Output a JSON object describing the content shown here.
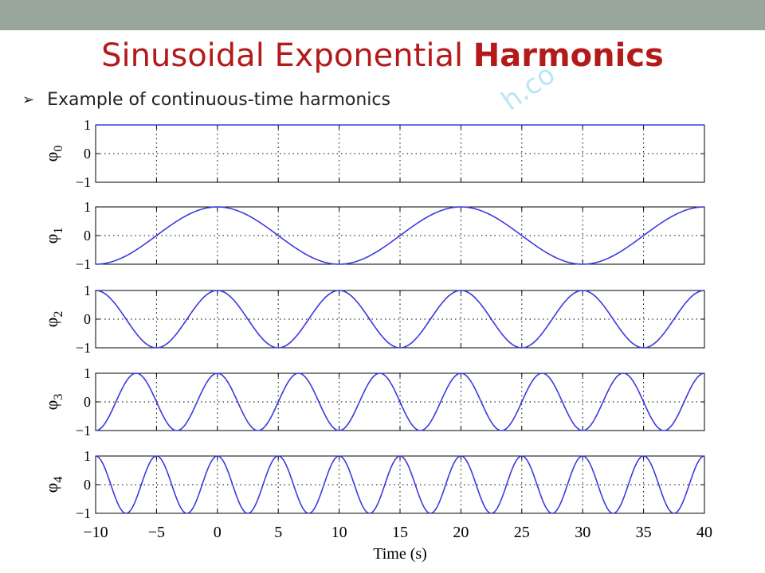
{
  "slide": {
    "title_main": "Sinusoidal Exponential ",
    "title_bold": "Harmonics",
    "bullet_text": "Example of continuous-time harmonics",
    "watermark_text": "h.co"
  },
  "colors": {
    "top_bar": "#97a59a",
    "title": "#b31b1b",
    "series": "#3b3bdf",
    "watermark": "#7fd3ee"
  },
  "chart_data": {
    "type": "line",
    "title": "",
    "xlabel": "Time (s)",
    "xlim": [
      -10,
      40
    ],
    "xticks": [
      -10,
      -5,
      0,
      5,
      10,
      15,
      20,
      25,
      30,
      35,
      40
    ],
    "xtick_labels": [
      "−10",
      "−5",
      "0",
      "5",
      "10",
      "15",
      "20",
      "25",
      "30",
      "35",
      "40"
    ],
    "ylim": [
      -1,
      1
    ],
    "yticks": [
      -1,
      0,
      1
    ],
    "ytick_labels": [
      "−1",
      "0",
      "1"
    ],
    "grid": true,
    "grid_style": "dotted",
    "fundamental_period": 20,
    "series": [
      {
        "harmonic": 0,
        "ylabel_base": "φ",
        "ylabel_sub": "0",
        "function": "cos(2π·0·t/20)"
      },
      {
        "harmonic": 1,
        "ylabel_base": "φ",
        "ylabel_sub": "1",
        "function": "cos(2π·1·t/20)"
      },
      {
        "harmonic": 2,
        "ylabel_base": "φ",
        "ylabel_sub": "2",
        "function": "cos(2π·2·t/20)"
      },
      {
        "harmonic": 3,
        "ylabel_base": "φ",
        "ylabel_sub": "3",
        "function": "cos(2π·3·t/20)"
      },
      {
        "harmonic": 4,
        "ylabel_base": "φ",
        "ylabel_sub": "4",
        "function": "cos(2π·4·t/20)"
      }
    ]
  }
}
